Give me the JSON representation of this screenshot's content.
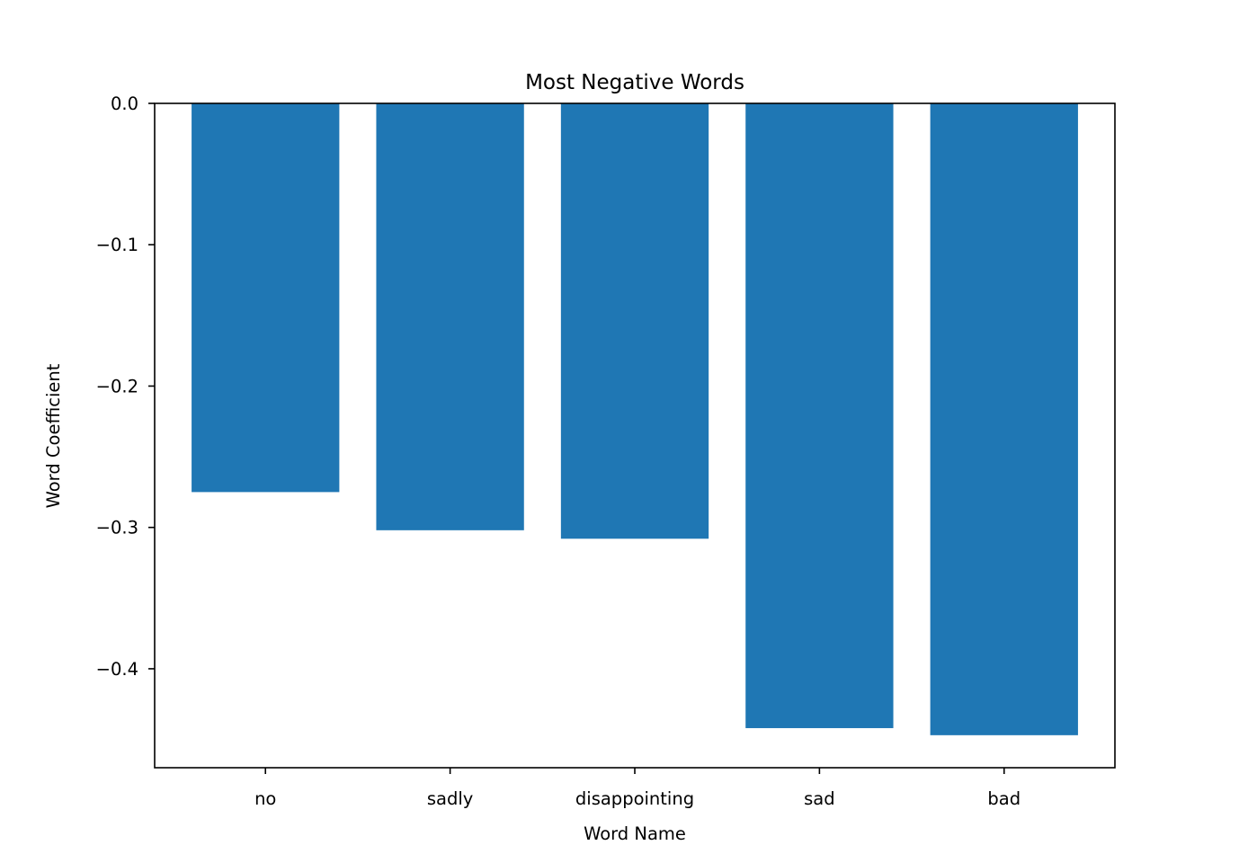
{
  "chart_data": {
    "type": "bar",
    "title": "Most Negative Words",
    "xlabel": "Word Name",
    "ylabel": "Word Coefficient",
    "categories": [
      "no",
      "sadly",
      "disappointing",
      "sad",
      "bad"
    ],
    "values": [
      -0.275,
      -0.302,
      -0.308,
      -0.442,
      -0.447
    ],
    "ylim": [
      -0.47,
      0.0
    ],
    "yticks": [
      0.0,
      -0.1,
      -0.2,
      -0.3,
      -0.4
    ],
    "ytick_labels": [
      "0.0",
      "−0.1",
      "−0.2",
      "−0.3",
      "−0.4"
    ],
    "bar_color": "#1f77b4",
    "grid": false,
    "legend": "none"
  }
}
